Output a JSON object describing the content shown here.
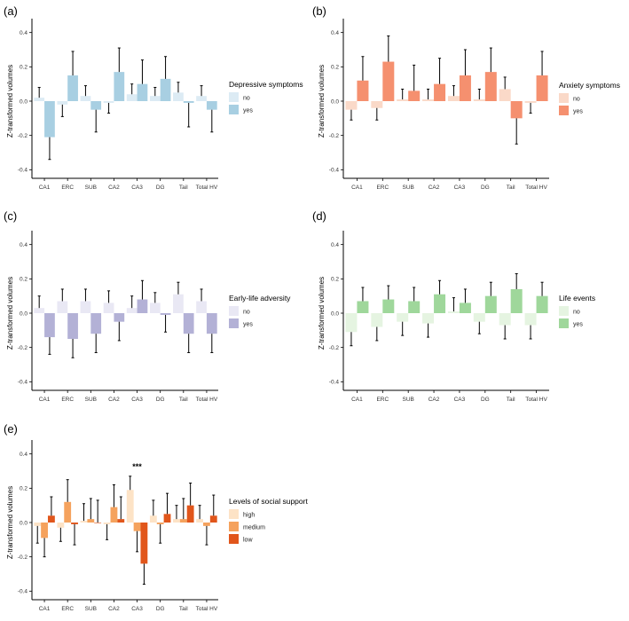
{
  "chart_data": [
    {
      "id": "a",
      "panel_label": "(a)",
      "type": "bar",
      "ylabel": "Z-transformed volumes",
      "ylim": [
        -0.45,
        0.45
      ],
      "yticks": [
        -0.4,
        -0.2,
        0.0,
        0.2,
        0.4
      ],
      "ytick_labels": [
        "-0.4",
        "-0.2",
        "0.0",
        "0.2",
        "0.4"
      ],
      "categories": [
        "CA1",
        "ERC",
        "SUB",
        "CA2",
        "CA3",
        "DG",
        "Tail",
        "Total HV"
      ],
      "legend_title": "Depressive symptoms",
      "series": [
        {
          "name": "no",
          "color": "#dcebf4",
          "values": [
            0.02,
            -0.02,
            0.03,
            -0.01,
            0.04,
            0.03,
            0.05,
            0.03
          ],
          "errors": [
            0.06,
            0.07,
            0.06,
            0.06,
            0.06,
            0.05,
            0.06,
            0.06
          ]
        },
        {
          "name": "yes",
          "color": "#a8cfe2",
          "values": [
            -0.21,
            0.15,
            -0.05,
            0.17,
            0.1,
            0.13,
            -0.01,
            -0.05
          ],
          "errors": [
            0.13,
            0.14,
            0.13,
            0.14,
            0.14,
            0.13,
            0.14,
            0.13
          ]
        }
      ],
      "annotations": []
    },
    {
      "id": "b",
      "panel_label": "(b)",
      "type": "bar",
      "ylabel": "Z-transformed volumes",
      "ylim": [
        -0.45,
        0.45
      ],
      "yticks": [
        -0.4,
        -0.2,
        0.0,
        0.2,
        0.4
      ],
      "ytick_labels": [
        "-0.4",
        "-0.2",
        "0.0",
        "0.2",
        "0.4"
      ],
      "categories": [
        "CA1",
        "ERC",
        "SUB",
        "CA2",
        "CA3",
        "DG",
        "Tail",
        "Total HV"
      ],
      "legend_title": "Anxiety symptoms",
      "series": [
        {
          "name": "no",
          "color": "#fad9c8",
          "values": [
            -0.05,
            -0.04,
            0.01,
            0.01,
            0.03,
            0.01,
            0.07,
            -0.01
          ],
          "errors": [
            0.06,
            0.07,
            0.06,
            0.06,
            0.06,
            0.06,
            0.07,
            0.06
          ]
        },
        {
          "name": "yes",
          "color": "#f5906f",
          "values": [
            0.12,
            0.23,
            0.06,
            0.1,
            0.15,
            0.17,
            -0.1,
            0.15
          ],
          "errors": [
            0.14,
            0.15,
            0.15,
            0.15,
            0.15,
            0.14,
            0.15,
            0.14
          ]
        }
      ],
      "annotations": []
    },
    {
      "id": "c",
      "panel_label": "(c)",
      "type": "bar",
      "ylabel": "Z-transformed volumes",
      "ylim": [
        -0.45,
        0.45
      ],
      "yticks": [
        -0.4,
        -0.2,
        0.0,
        0.2,
        0.4
      ],
      "ytick_labels": [
        "-0.4",
        "-0.2",
        "0.0",
        "0.2",
        "0.4"
      ],
      "categories": [
        "CA1",
        "ERC",
        "SUB",
        "CA2",
        "CA3",
        "DG",
        "Tail",
        "Total HV"
      ],
      "legend_title": "Early-life adversity",
      "series": [
        {
          "name": "no",
          "color": "#e9e8f4",
          "values": [
            0.03,
            0.07,
            0.07,
            0.06,
            0.03,
            0.06,
            0.11,
            0.07
          ],
          "errors": [
            0.07,
            0.07,
            0.07,
            0.07,
            0.07,
            0.06,
            0.07,
            0.07
          ]
        },
        {
          "name": "yes",
          "color": "#b3b1d6",
          "values": [
            -0.14,
            -0.15,
            -0.12,
            -0.05,
            0.08,
            -0.01,
            -0.12,
            -0.12
          ],
          "errors": [
            0.1,
            0.11,
            0.11,
            0.11,
            0.11,
            0.1,
            0.11,
            0.11
          ]
        }
      ],
      "annotations": []
    },
    {
      "id": "d",
      "panel_label": "(d)",
      "type": "bar",
      "ylabel": "Z-transformed volumes",
      "ylim": [
        -0.45,
        0.45
      ],
      "yticks": [
        -0.4,
        -0.2,
        0.0,
        0.2,
        0.4
      ],
      "ytick_labels": [
        "-0.4",
        "-0.2",
        "0.0",
        "0.2",
        "0.4"
      ],
      "categories": [
        "CA1",
        "ERC",
        "SUB",
        "CA2",
        "CA3",
        "DG",
        "Tail",
        "Total HV"
      ],
      "legend_title": "Life events",
      "series": [
        {
          "name": "no",
          "color": "#e5f4e1",
          "values": [
            -0.11,
            -0.08,
            -0.05,
            -0.06,
            0.01,
            -0.05,
            -0.07,
            -0.07
          ],
          "errors": [
            0.08,
            0.08,
            0.08,
            0.08,
            0.08,
            0.07,
            0.08,
            0.08
          ]
        },
        {
          "name": "yes",
          "color": "#9fd79b",
          "values": [
            0.07,
            0.08,
            0.07,
            0.11,
            0.06,
            0.1,
            0.14,
            0.1
          ],
          "errors": [
            0.08,
            0.08,
            0.08,
            0.08,
            0.08,
            0.08,
            0.09,
            0.08
          ]
        }
      ],
      "annotations": []
    },
    {
      "id": "e",
      "panel_label": "(e)",
      "type": "bar",
      "ylabel": "Z-transformed volumes",
      "ylim": [
        -0.45,
        0.45
      ],
      "yticks": [
        -0.4,
        -0.2,
        0.0,
        0.2,
        0.4
      ],
      "ytick_labels": [
        "-0.4",
        "-0.2",
        "0.0",
        "0.2",
        "0.4"
      ],
      "categories": [
        "CA1",
        "ERC",
        "SUB",
        "CA2",
        "CA3",
        "DG",
        "Tail",
        "Total HV"
      ],
      "legend_title": "Levels of social support",
      "series": [
        {
          "name": "high",
          "color": "#fde3c6",
          "values": [
            -0.02,
            -0.03,
            0.01,
            -0.01,
            0.19,
            0.04,
            0.02,
            0.02
          ],
          "errors": [
            0.1,
            0.08,
            0.1,
            0.09,
            0.08,
            0.09,
            0.08,
            0.08
          ]
        },
        {
          "name": "medium",
          "color": "#f5a25d",
          "values": [
            -0.09,
            0.12,
            0.02,
            0.09,
            -0.05,
            -0.01,
            0.02,
            -0.02
          ],
          "errors": [
            0.11,
            0.13,
            0.12,
            0.13,
            0.12,
            0.11,
            0.12,
            0.11
          ]
        },
        {
          "name": "low",
          "color": "#e1561b",
          "values": [
            0.04,
            -0.01,
            0.0,
            0.02,
            -0.24,
            0.05,
            0.1,
            0.04
          ],
          "errors": [
            0.11,
            0.12,
            0.13,
            0.13,
            0.12,
            0.12,
            0.13,
            0.12
          ]
        }
      ],
      "annotations": [
        {
          "category": "CA3",
          "text": "***"
        }
      ]
    }
  ]
}
